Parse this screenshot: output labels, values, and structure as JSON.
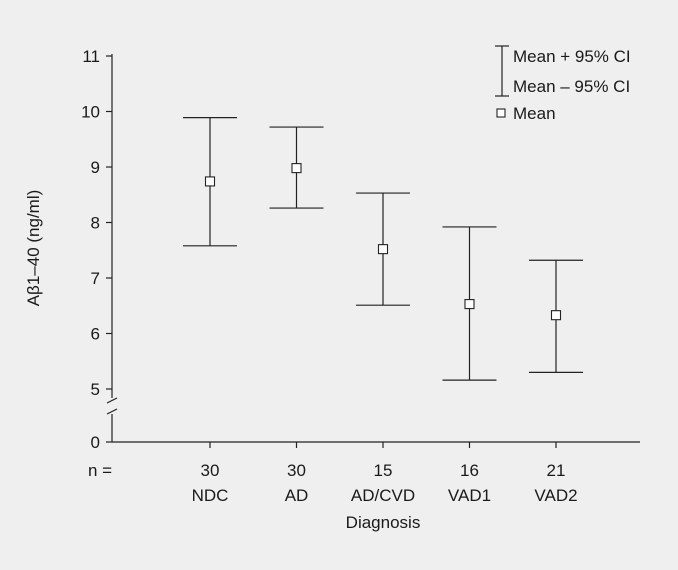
{
  "chart_data": {
    "type": "errorbar",
    "xlabel": "Diagnosis",
    "ylabel": "Aβ1–40 (ng/ml)",
    "n_label": "n =",
    "y_ticks": [
      "0",
      "5",
      "6",
      "7",
      "8",
      "9",
      "10",
      "11"
    ],
    "ylim": [
      5,
      11
    ],
    "axis_break": true,
    "grid": false,
    "categories": [
      "NDC",
      "AD",
      "AD/CVD",
      "VAD1",
      "VAD2"
    ],
    "n": [
      "30",
      "30",
      "15",
      "16",
      "21"
    ],
    "series": [
      {
        "mean": [
          8.74,
          8.98,
          7.52,
          6.53,
          6.33
        ],
        "lower": [
          7.58,
          8.26,
          6.51,
          5.16,
          5.3
        ],
        "upper": [
          9.89,
          9.72,
          8.53,
          7.92,
          7.32
        ]
      }
    ],
    "legend": {
      "position": "top-right",
      "upper_label": "Mean + 95% CI",
      "lower_label": "Mean – 95% CI",
      "mean_label": "Mean"
    }
  }
}
